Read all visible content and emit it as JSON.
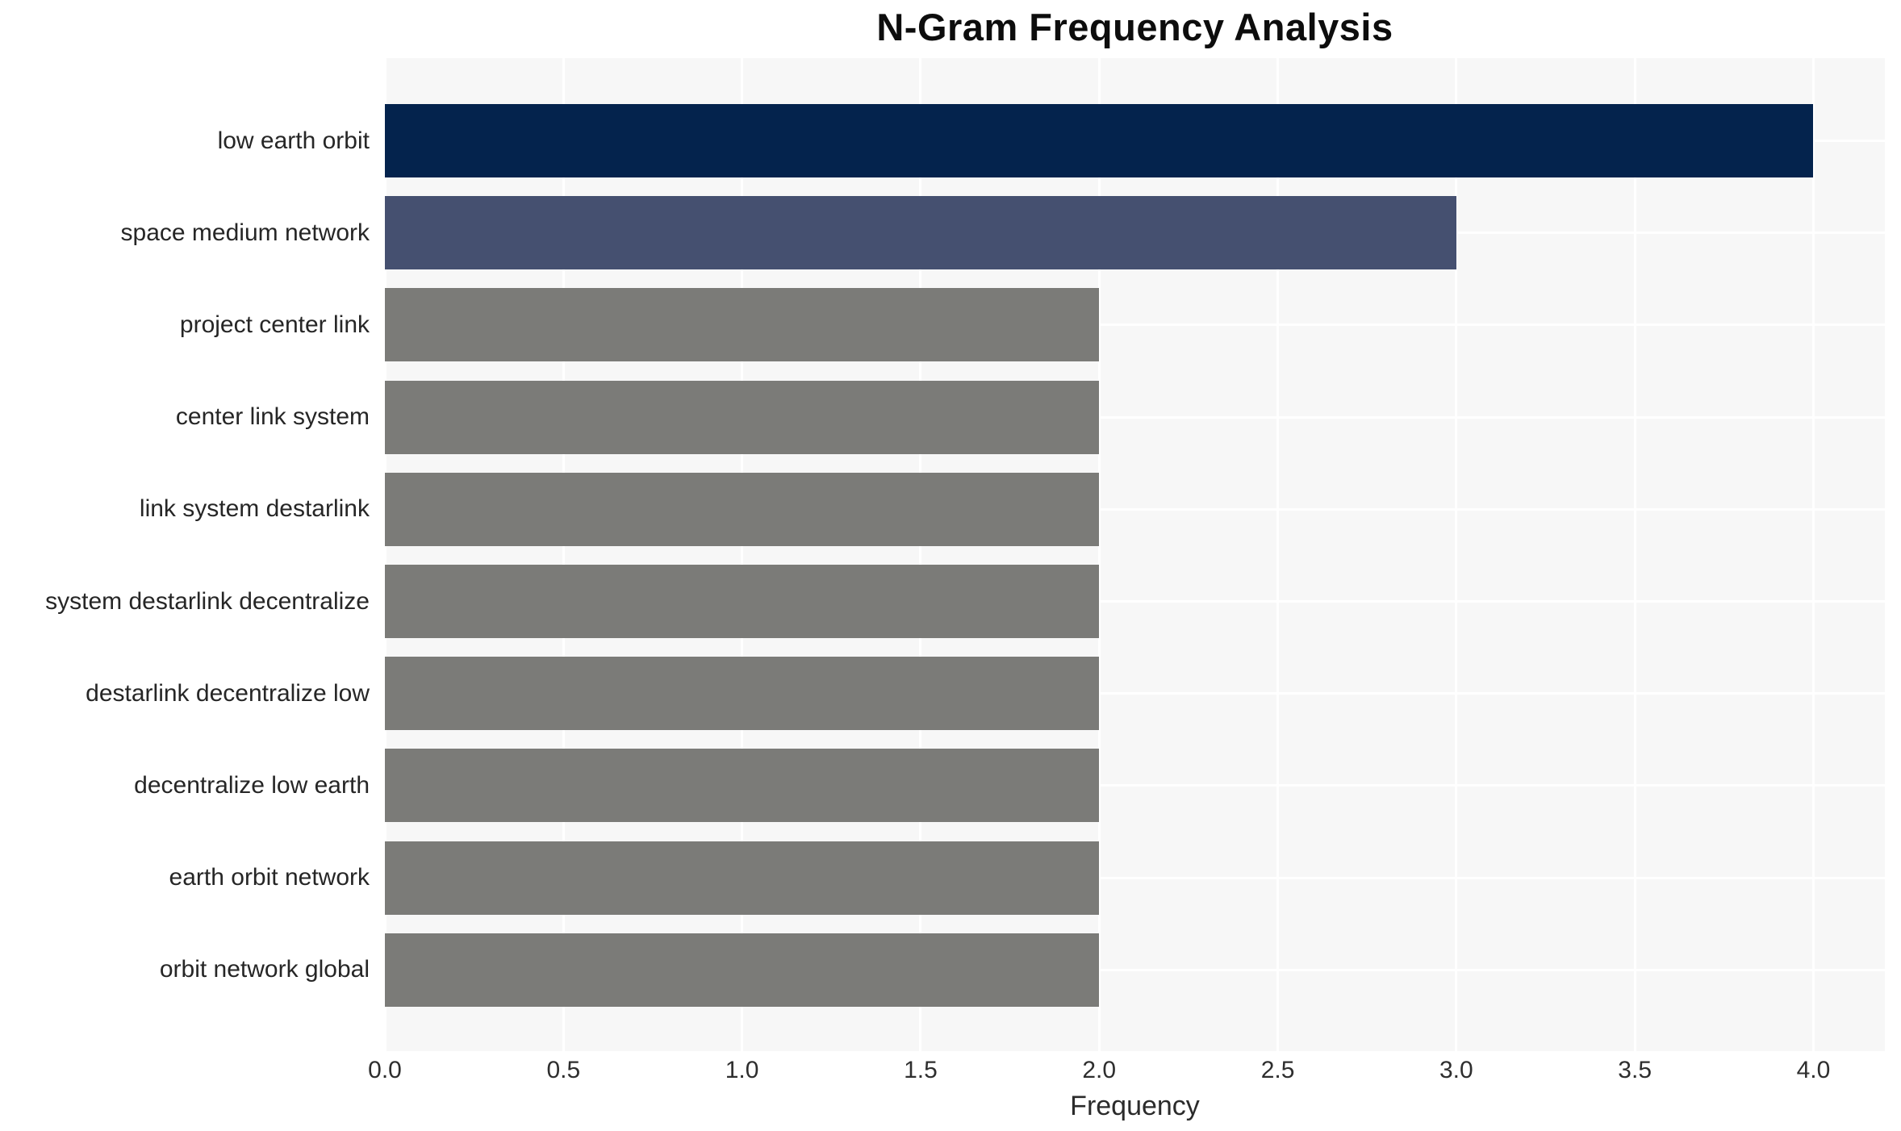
{
  "chart_data": {
    "type": "bar",
    "orientation": "horizontal",
    "title": "N-Gram Frequency Analysis",
    "xlabel": "Frequency",
    "ylabel": "",
    "categories": [
      "low earth orbit",
      "space medium network",
      "project center link",
      "center link system",
      "link system destarlink",
      "system destarlink decentralize",
      "destarlink decentralize low",
      "decentralize low earth",
      "earth orbit network",
      "orbit network global"
    ],
    "values": [
      4,
      3,
      2,
      2,
      2,
      2,
      2,
      2,
      2,
      2
    ],
    "bar_colors": [
      "#04234d",
      "#455070",
      "#7b7b78",
      "#7b7b78",
      "#7b7b78",
      "#7b7b78",
      "#7b7b78",
      "#7b7b78",
      "#7b7b78",
      "#7b7b78"
    ],
    "x_ticks": [
      0.0,
      0.5,
      1.0,
      1.5,
      2.0,
      2.5,
      3.0,
      3.5,
      4.0
    ],
    "x_tick_labels": [
      "0.0",
      "0.5",
      "1.0",
      "1.5",
      "2.0",
      "2.5",
      "3.0",
      "3.5",
      "4.0"
    ],
    "xlim": [
      0,
      4.2
    ],
    "grid": true,
    "grid_color": "#ffffff",
    "plot_background": "#f7f7f7",
    "legend": "none"
  }
}
